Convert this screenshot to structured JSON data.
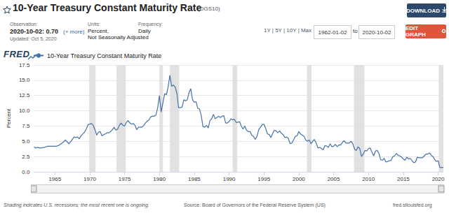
{
  "header": {
    "title": "10-Year Treasury Constant Maturity Rate",
    "series_id": "(DGS10)",
    "observation_label": "Observation:",
    "observation": "2020-10-02: 0.70",
    "more": "(+ more)",
    "updated": "Updated: Oct 5, 2020",
    "units_label": "Units:",
    "units": [
      "Percent,",
      "Not Seasonally Adjusted"
    ],
    "frequency_label": "Frequency:",
    "frequency": "Daily",
    "ranges": "1Y | 5Y | 10Y | Max",
    "date_from": "1962-01-02",
    "to": "to",
    "date_to": "2020-10-02",
    "download": "DOWNLOAD",
    "edit": "EDIT GRAPH",
    "logo": "FRED"
  },
  "footer": {
    "note": "Shading indicates U.S. recessions; the most recent one is ongoing.",
    "source": "Source: Board of Governors of the Federal Reserve System (US)",
    "url": "fred.stlouisfed.org"
  },
  "chart_data": {
    "type": "line",
    "ylabel": "Percent",
    "grid": true,
    "legend": "top-left",
    "xlim": [
      1962,
      2020.75
    ],
    "xticks": [
      1965,
      1970,
      1975,
      1980,
      1985,
      1990,
      1995,
      2000,
      2005,
      2010,
      2015,
      2020
    ],
    "ylim": [
      0,
      17.5
    ],
    "yticks": [
      {
        "value": 0,
        "label": "0.0"
      },
      2.5,
      {
        "value": 5,
        "label": "5.0"
      },
      7.5,
      {
        "value": 10,
        "label": "10.0"
      },
      12.5,
      {
        "value": 15,
        "label": "15.0"
      },
      17.5
    ],
    "recessions": [
      [
        1969.92,
        1970.83
      ],
      [
        1973.83,
        1975.17
      ],
      [
        1980.0,
        1980.5
      ],
      [
        1981.5,
        1982.83
      ],
      [
        1990.5,
        1991.17
      ],
      [
        2001.17,
        2001.83
      ],
      [
        2007.92,
        2009.42
      ],
      [
        2020.08,
        2020.75
      ]
    ],
    "x": [
      1962,
      1962.25,
      1962.5,
      1962.75,
      1963,
      1963.25,
      1963.5,
      1963.75,
      1964,
      1964.25,
      1964.5,
      1964.75,
      1965,
      1965.25,
      1965.5,
      1965.75,
      1966,
      1966.25,
      1966.5,
      1966.75,
      1967,
      1967.25,
      1967.5,
      1967.75,
      1968,
      1968.25,
      1968.5,
      1968.75,
      1969,
      1969.25,
      1969.5,
      1969.75,
      1970,
      1970.25,
      1970.5,
      1970.75,
      1971,
      1971.25,
      1971.5,
      1971.75,
      1972,
      1972.25,
      1972.5,
      1972.75,
      1973,
      1973.25,
      1973.5,
      1973.75,
      1974,
      1974.25,
      1974.5,
      1974.75,
      1975,
      1975.25,
      1975.5,
      1975.75,
      1976,
      1976.25,
      1976.5,
      1976.75,
      1977,
      1977.25,
      1977.5,
      1977.75,
      1978,
      1978.25,
      1978.5,
      1978.75,
      1979,
      1979.25,
      1979.5,
      1979.75,
      1980,
      1980.25,
      1980.5,
      1980.75,
      1981,
      1981.25,
      1981.5,
      1981.75,
      1982,
      1982.25,
      1982.5,
      1982.75,
      1983,
      1983.25,
      1983.5,
      1983.75,
      1984,
      1984.25,
      1984.5,
      1984.75,
      1985,
      1985.25,
      1985.5,
      1985.75,
      1986,
      1986.25,
      1986.5,
      1986.75,
      1987,
      1987.25,
      1987.5,
      1987.75,
      1988,
      1988.25,
      1988.5,
      1988.75,
      1989,
      1989.25,
      1989.5,
      1989.75,
      1990,
      1990.25,
      1990.5,
      1990.75,
      1991,
      1991.25,
      1991.5,
      1991.75,
      1992,
      1992.25,
      1992.5,
      1992.75,
      1993,
      1993.25,
      1993.5,
      1993.75,
      1994,
      1994.25,
      1994.5,
      1994.75,
      1995,
      1995.25,
      1995.5,
      1995.75,
      1996,
      1996.25,
      1996.5,
      1996.75,
      1997,
      1997.25,
      1997.5,
      1997.75,
      1998,
      1998.25,
      1998.5,
      1998.75,
      1999,
      1999.25,
      1999.5,
      1999.75,
      2000,
      2000.25,
      2000.5,
      2000.75,
      2001,
      2001.25,
      2001.5,
      2001.75,
      2002,
      2002.25,
      2002.5,
      2002.75,
      2003,
      2003.25,
      2003.5,
      2003.75,
      2004,
      2004.25,
      2004.5,
      2004.75,
      2005,
      2005.25,
      2005.5,
      2005.75,
      2006,
      2006.25,
      2006.5,
      2006.75,
      2007,
      2007.25,
      2007.5,
      2007.75,
      2008,
      2008.25,
      2008.5,
      2008.75,
      2009,
      2009.25,
      2009.5,
      2009.75,
      2010,
      2010.25,
      2010.5,
      2010.75,
      2011,
      2011.25,
      2011.5,
      2011.75,
      2012,
      2012.25,
      2012.5,
      2012.75,
      2013,
      2013.25,
      2013.5,
      2013.75,
      2014,
      2014.25,
      2014.5,
      2014.75,
      2015,
      2015.25,
      2015.5,
      2015.75,
      2016,
      2016.25,
      2016.5,
      2016.75,
      2017,
      2017.25,
      2017.5,
      2017.75,
      2018,
      2018.25,
      2018.5,
      2018.75,
      2019,
      2019.25,
      2019.5,
      2019.75,
      2020,
      2020.25,
      2020.5,
      2020.75
    ],
    "series": [
      {
        "name": "10-Year Treasury Constant Maturity Rate",
        "color": "#4572a7",
        "values": [
          4.08,
          3.9,
          4.0,
          3.9,
          3.9,
          3.97,
          4.0,
          4.1,
          4.2,
          4.2,
          4.2,
          4.2,
          4.2,
          4.2,
          4.3,
          4.5,
          4.7,
          4.9,
          5.2,
          4.9,
          4.6,
          4.9,
          5.3,
          5.7,
          5.6,
          5.7,
          5.4,
          5.9,
          6.2,
          6.5,
          7.0,
          7.7,
          7.8,
          7.9,
          7.6,
          6.9,
          6.0,
          6.5,
          6.6,
          5.9,
          6.1,
          6.2,
          6.4,
          6.4,
          6.6,
          6.9,
          7.3,
          6.8,
          7.0,
          7.6,
          8.0,
          7.6,
          7.5,
          8.1,
          8.4,
          8.0,
          7.8,
          7.9,
          7.6,
          6.9,
          7.3,
          7.3,
          7.3,
          7.6,
          8.0,
          8.3,
          8.5,
          9.0,
          9.1,
          9.1,
          9.3,
          10.5,
          12.5,
          9.8,
          11.3,
          12.8,
          12.6,
          13.9,
          15.8,
          14.0,
          14.2,
          13.9,
          12.9,
          10.5,
          10.5,
          10.6,
          11.8,
          11.6,
          11.8,
          13.0,
          13.6,
          11.8,
          11.4,
          11.5,
          10.4,
          10.3,
          9.2,
          7.4,
          7.3,
          7.6,
          7.2,
          8.4,
          8.7,
          9.4,
          8.7,
          8.9,
          9.1,
          8.9,
          9.1,
          9.2,
          8.0,
          8.0,
          8.2,
          8.7,
          8.5,
          8.6,
          8.1,
          8.1,
          8.2,
          7.5,
          7.0,
          7.5,
          6.8,
          6.6,
          6.6,
          6.0,
          5.8,
          5.3,
          5.8,
          6.9,
          7.3,
          7.7,
          7.8,
          7.1,
          6.2,
          6.1,
          5.6,
          6.3,
          6.8,
          6.7,
          6.4,
          6.7,
          6.3,
          6.1,
          5.6,
          5.7,
          5.5,
          4.6,
          4.7,
          5.2,
          5.8,
          5.9,
          6.6,
          6.2,
          6.0,
          5.8,
          5.2,
          5.0,
          5.2,
          4.6,
          5.0,
          5.3,
          4.7,
          3.9,
          4.0,
          3.8,
          3.6,
          4.3,
          4.2,
          4.0,
          4.6,
          4.1,
          4.2,
          4.5,
          4.1,
          4.4,
          4.4,
          4.8,
          5.1,
          4.7,
          4.7,
          4.7,
          5.0,
          4.6,
          3.7,
          3.5,
          4.1,
          3.8,
          2.5,
          2.9,
          3.5,
          3.4,
          3.8,
          3.9,
          3.2,
          2.6,
          3.4,
          3.5,
          3.0,
          2.0,
          1.9,
          2.2,
          1.6,
          1.7,
          1.8,
          1.9,
          2.5,
          2.6,
          3.0,
          2.7,
          2.6,
          2.4,
          2.1,
          1.9,
          2.4,
          2.1,
          2.2,
          1.8,
          1.5,
          1.6,
          2.4,
          2.3,
          2.3,
          2.3,
          2.6,
          2.9,
          2.9,
          3.1,
          2.7,
          2.5,
          2.0,
          1.7,
          1.8,
          0.7,
          0.7,
          0.7
        ]
      }
    ]
  }
}
